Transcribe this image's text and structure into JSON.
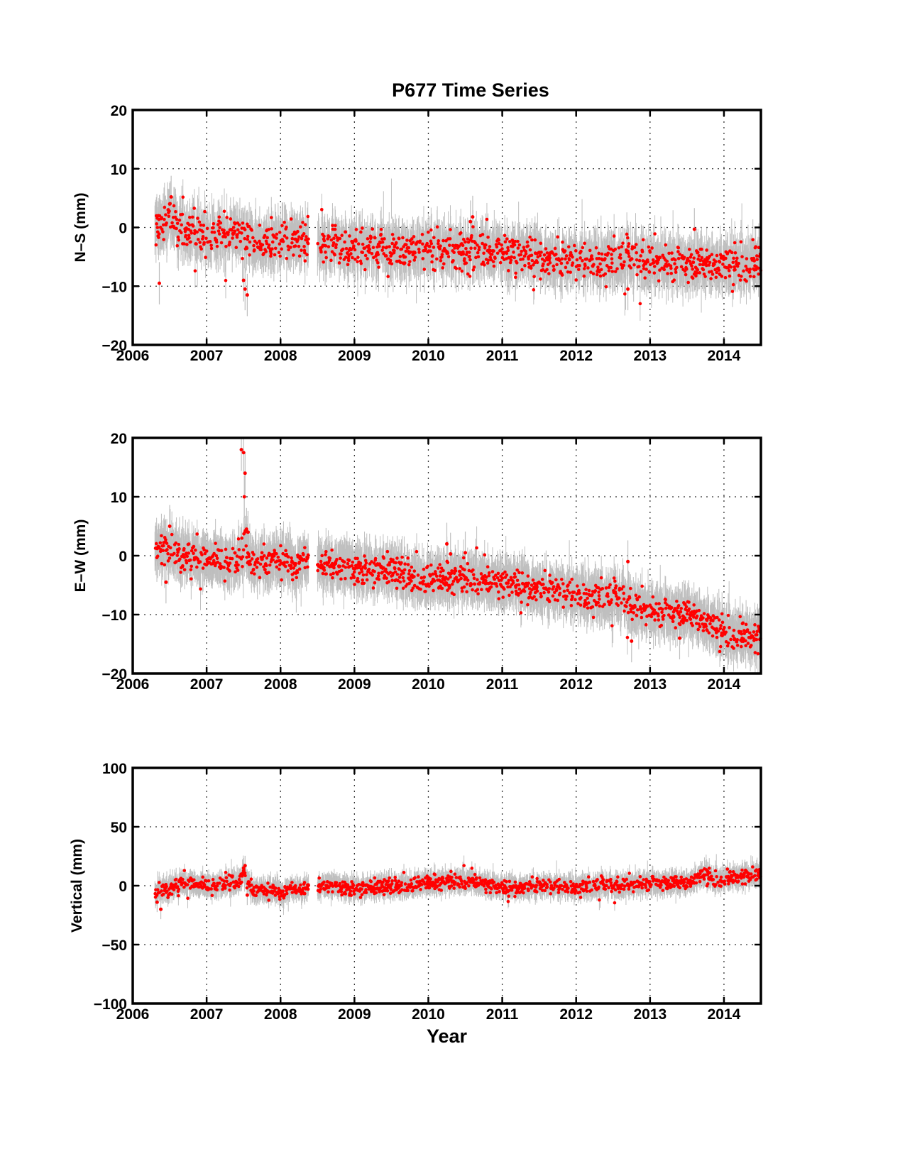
{
  "chart_data": [
    {
      "type": "scatter",
      "title": "P677 Time Series",
      "ylabel": "N–S (mm)",
      "xlabel": "",
      "xlim": [
        2006,
        2014.5
      ],
      "ylim": [
        -20,
        20
      ],
      "x_ticks": [
        "2006",
        "2007",
        "2008",
        "2009",
        "2010",
        "2011",
        "2012",
        "2013",
        "2014"
      ],
      "y_ticks": [
        "20",
        "10",
        "0",
        "−10",
        "−20"
      ],
      "y_tick_values": [
        20,
        10,
        0,
        -10,
        -20
      ],
      "grid": true,
      "point_color": "#ff0000",
      "error_bar_color": "#bfbfbf",
      "trend": [
        [
          2006.3,
          0
        ],
        [
          2006.5,
          1.5
        ],
        [
          2006.7,
          -1
        ],
        [
          2007.0,
          -1.5
        ],
        [
          2007.5,
          -1
        ],
        [
          2007.6,
          -2.5
        ],
        [
          2008.0,
          -2.5
        ],
        [
          2008.35,
          -2.2
        ],
        [
          2008.55,
          -3
        ],
        [
          2009.0,
          -3.5
        ],
        [
          2010.0,
          -3.8
        ],
        [
          2010.6,
          -3.8
        ],
        [
          2011.0,
          -4.5
        ],
        [
          2011.5,
          -4.8
        ],
        [
          2011.7,
          -5.5
        ],
        [
          2012.0,
          -5.7
        ],
        [
          2012.7,
          -5.5
        ],
        [
          2013.0,
          -6
        ],
        [
          2013.7,
          -6.5
        ],
        [
          2014.0,
          -6.5
        ],
        [
          2014.5,
          -5.8
        ]
      ],
      "scatter_sd": 1.5,
      "error_half": 3,
      "gap": [
        2008.38,
        2008.5
      ],
      "special": [
        [
          2006.36,
          -9.5
        ],
        [
          2007.5,
          -9
        ],
        [
          2007.55,
          -11.5
        ],
        [
          2006.5,
          4
        ],
        [
          2006.52,
          5.2
        ],
        [
          2006.48,
          3
        ],
        [
          2007.52,
          -10.5
        ],
        [
          2010.6,
          1.8
        ],
        [
          2010.57,
          1
        ],
        [
          2012.7,
          -10.5
        ],
        [
          2013.6,
          -0.3
        ]
      ]
    },
    {
      "type": "scatter",
      "title": "",
      "ylabel": "E–W (mm)",
      "xlabel": "",
      "xlim": [
        2006,
        2014.5
      ],
      "ylim": [
        -20,
        20
      ],
      "x_ticks": [
        "2006",
        "2007",
        "2008",
        "2009",
        "2010",
        "2011",
        "2012",
        "2013",
        "2014"
      ],
      "y_ticks": [
        "20",
        "10",
        "0",
        "−10",
        "−20"
      ],
      "y_tick_values": [
        20,
        10,
        0,
        -10,
        -20
      ],
      "grid": true,
      "point_color": "#ff0000",
      "error_bar_color": "#bfbfbf",
      "trend": [
        [
          2006.3,
          1.5
        ],
        [
          2006.5,
          1
        ],
        [
          2006.7,
          0
        ],
        [
          2007.0,
          -0.5
        ],
        [
          2007.45,
          -1
        ],
        [
          2007.52,
          2
        ],
        [
          2007.6,
          -1.5
        ],
        [
          2008.0,
          -1
        ],
        [
          2008.35,
          -1.2
        ],
        [
          2008.55,
          -1.5
        ],
        [
          2009.0,
          -2.5
        ],
        [
          2009.5,
          -2.5
        ],
        [
          2010.0,
          -4
        ],
        [
          2010.6,
          -4
        ],
        [
          2011.0,
          -4.5
        ],
        [
          2011.5,
          -5.5
        ],
        [
          2012.0,
          -6.5
        ],
        [
          2012.65,
          -7.5
        ],
        [
          2012.72,
          -8.5
        ],
        [
          2012.85,
          -9
        ],
        [
          2013.0,
          -9.5
        ],
        [
          2013.5,
          -10
        ],
        [
          2013.7,
          -11
        ],
        [
          2014.0,
          -13
        ],
        [
          2014.5,
          -14
        ]
      ],
      "scatter_sd": 1.2,
      "error_half": 3,
      "gap": [
        2008.38,
        2008.5
      ],
      "special": [
        [
          2007.47,
          18
        ],
        [
          2007.5,
          17.5
        ],
        [
          2007.52,
          14
        ],
        [
          2007.51,
          10
        ],
        [
          2007.54,
          4.5
        ],
        [
          2007.56,
          4
        ],
        [
          2010.25,
          2
        ],
        [
          2010.5,
          0.5
        ],
        [
          2010.3,
          0.3
        ],
        [
          2012.7,
          -1
        ],
        [
          2012.75,
          -14.5
        ],
        [
          2013.4,
          -14
        ],
        [
          2006.5,
          5
        ],
        [
          2006.45,
          -4.5
        ]
      ]
    },
    {
      "type": "scatter",
      "title": "",
      "ylabel": "Vertical (mm)",
      "xlabel": "Year",
      "xlim": [
        2006,
        2014.5
      ],
      "ylim": [
        -100,
        100
      ],
      "x_ticks": [
        "2006",
        "2007",
        "2008",
        "2009",
        "2010",
        "2011",
        "2012",
        "2013",
        "2014"
      ],
      "y_ticks": [
        "100",
        "50",
        "0",
        "−50",
        "−100"
      ],
      "y_tick_values": [
        100,
        50,
        0,
        -50,
        -100
      ],
      "grid": true,
      "point_color": "#ff0000",
      "error_bar_color": "#bfbfbf",
      "trend": [
        [
          2006.3,
          -5
        ],
        [
          2006.5,
          -2
        ],
        [
          2006.7,
          3
        ],
        [
          2007.0,
          0
        ],
        [
          2007.45,
          3
        ],
        [
          2007.5,
          12
        ],
        [
          2007.58,
          -2
        ],
        [
          2007.7,
          -5
        ],
        [
          2008.35,
          -3
        ],
        [
          2008.55,
          0
        ],
        [
          2009.0,
          -3
        ],
        [
          2009.5,
          0
        ],
        [
          2010.0,
          2
        ],
        [
          2010.6,
          4
        ],
        [
          2011.0,
          -2
        ],
        [
          2011.5,
          0
        ],
        [
          2012.0,
          -1
        ],
        [
          2012.6,
          0
        ],
        [
          2013.0,
          2
        ],
        [
          2013.5,
          2
        ],
        [
          2013.75,
          10
        ],
        [
          2013.85,
          5
        ],
        [
          2014.0,
          6
        ],
        [
          2014.5,
          10
        ]
      ],
      "scatter_sd": 3,
      "error_half": 7,
      "gap": [
        2008.38,
        2008.5
      ],
      "special": [
        [
          2006.38,
          -20
        ],
        [
          2006.33,
          -14
        ],
        [
          2007.5,
          15
        ],
        [
          2007.52,
          17
        ],
        [
          2007.55,
          -8
        ],
        [
          2010.6,
          6
        ],
        [
          2013.78,
          12
        ]
      ]
    }
  ]
}
